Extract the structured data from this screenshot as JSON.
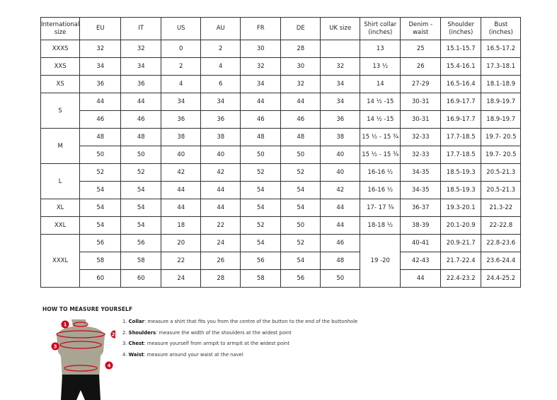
{
  "table": {
    "headers": [
      "International size",
      "EU",
      "IT",
      "US",
      "AU",
      "FR",
      "DE",
      "UK size",
      "Shirt collar (inches)",
      "Denim - waist",
      "Shoulder (inches)",
      "Bust (inches)"
    ],
    "groups": [
      {
        "size": "XXXS",
        "rows": [
          [
            "32",
            "32",
            "0",
            "2",
            "30",
            "28",
            "",
            "13",
            "25",
            "15.1-15.7",
            "16.5-17.2"
          ]
        ]
      },
      {
        "size": "XXS",
        "rows": [
          [
            "34",
            "34",
            "2",
            "4",
            "32",
            "30",
            "32",
            "13 ½",
            "26",
            "15.4-16.1",
            "17.3-18.1"
          ]
        ]
      },
      {
        "size": "XS",
        "rows": [
          [
            "36",
            "36",
            "4",
            "6",
            "34",
            "32",
            "34",
            "14",
            "27-29",
            "16.5-16.4",
            "18.1-18.9"
          ]
        ]
      },
      {
        "size": "S",
        "rows": [
          [
            "44",
            "44",
            "34",
            "34",
            "44",
            "44",
            "34",
            "14 ½ -15",
            "30-31",
            "16.9-17.7",
            "18.9-19.7"
          ],
          [
            "46",
            "46",
            "36",
            "36",
            "46",
            "46",
            "36",
            "14 ½ -15",
            "30-31",
            "16.9-17.7",
            "18.9-19.7"
          ]
        ]
      },
      {
        "size": "M",
        "rows": [
          [
            "48",
            "48",
            "38",
            "38",
            "48",
            "48",
            "38",
            "15 ½ - 15 ¾",
            "32-33",
            "17.7-18.5",
            "19.7- 20.5"
          ],
          [
            "50",
            "50",
            "40",
            "40",
            "50",
            "50",
            "40",
            "15 ½ - 15 ¾",
            "32-33",
            "17.7-18.5",
            "19.7- 20.5"
          ]
        ]
      },
      {
        "size": "L",
        "rows": [
          [
            "52",
            "52",
            "42",
            "42",
            "52",
            "52",
            "40",
            "16-16 ½",
            "34-35",
            "18.5-19.3",
            "20.5-21.3"
          ],
          [
            "54",
            "54",
            "44",
            "44",
            "54",
            "54",
            "42",
            "16-16 ½",
            "34-35",
            "18.5-19.3",
            "20.5-21.3"
          ]
        ]
      },
      {
        "size": "XL",
        "rows": [
          [
            "54",
            "54",
            "44",
            "44",
            "54",
            "54",
            "44",
            "17- 17 ¾",
            "36-37",
            "19.3-20.1",
            "21.3-22"
          ]
        ]
      },
      {
        "size": "XXL",
        "rows": [
          [
            "54",
            "54",
            "18",
            "22",
            "52",
            "50",
            "44",
            "18-18 ½",
            "38-39",
            "20.1-20.9",
            "22-22.8"
          ]
        ]
      },
      {
        "size": "XXXL",
        "rows": [
          [
            "56",
            "56",
            "20",
            "24",
            "54",
            "52",
            "46",
            "19 -20",
            "40-41",
            "20.9-21.7",
            "22.8-23.6"
          ],
          [
            "58",
            "58",
            "22",
            "26",
            "56",
            "54",
            "48",
            null,
            "42-43",
            "21.7-22.4",
            "23.6-24.4"
          ],
          [
            "60",
            "60",
            "24",
            "28",
            "58",
            "56",
            "50",
            null,
            "44",
            "22.4-23.2",
            "24.4-25.2"
          ]
        ]
      }
    ]
  },
  "guide": {
    "title": "HOW TO MEASURE YOURSELF",
    "steps": [
      {
        "num": "1.",
        "label": "Collar",
        "text": ": measure a shirt that fits you from the centre of the button to the end of the buttonhole"
      },
      {
        "num": "2.",
        "label": "Shoulders",
        "text": ": measure the width of the shoulders at the widest point"
      },
      {
        "num": "3.",
        "label": "Chest",
        "text": ": measure yourself from armpit to armpit at the widest point"
      },
      {
        "num": "4.",
        "label": "Waist",
        "text": ": measure around your waist at the navel"
      }
    ],
    "markers": [
      "1",
      "2",
      "3",
      "4"
    ],
    "colors": {
      "marker": "#d0021b",
      "torso": "#a8a592",
      "shorts": "#111111"
    }
  }
}
